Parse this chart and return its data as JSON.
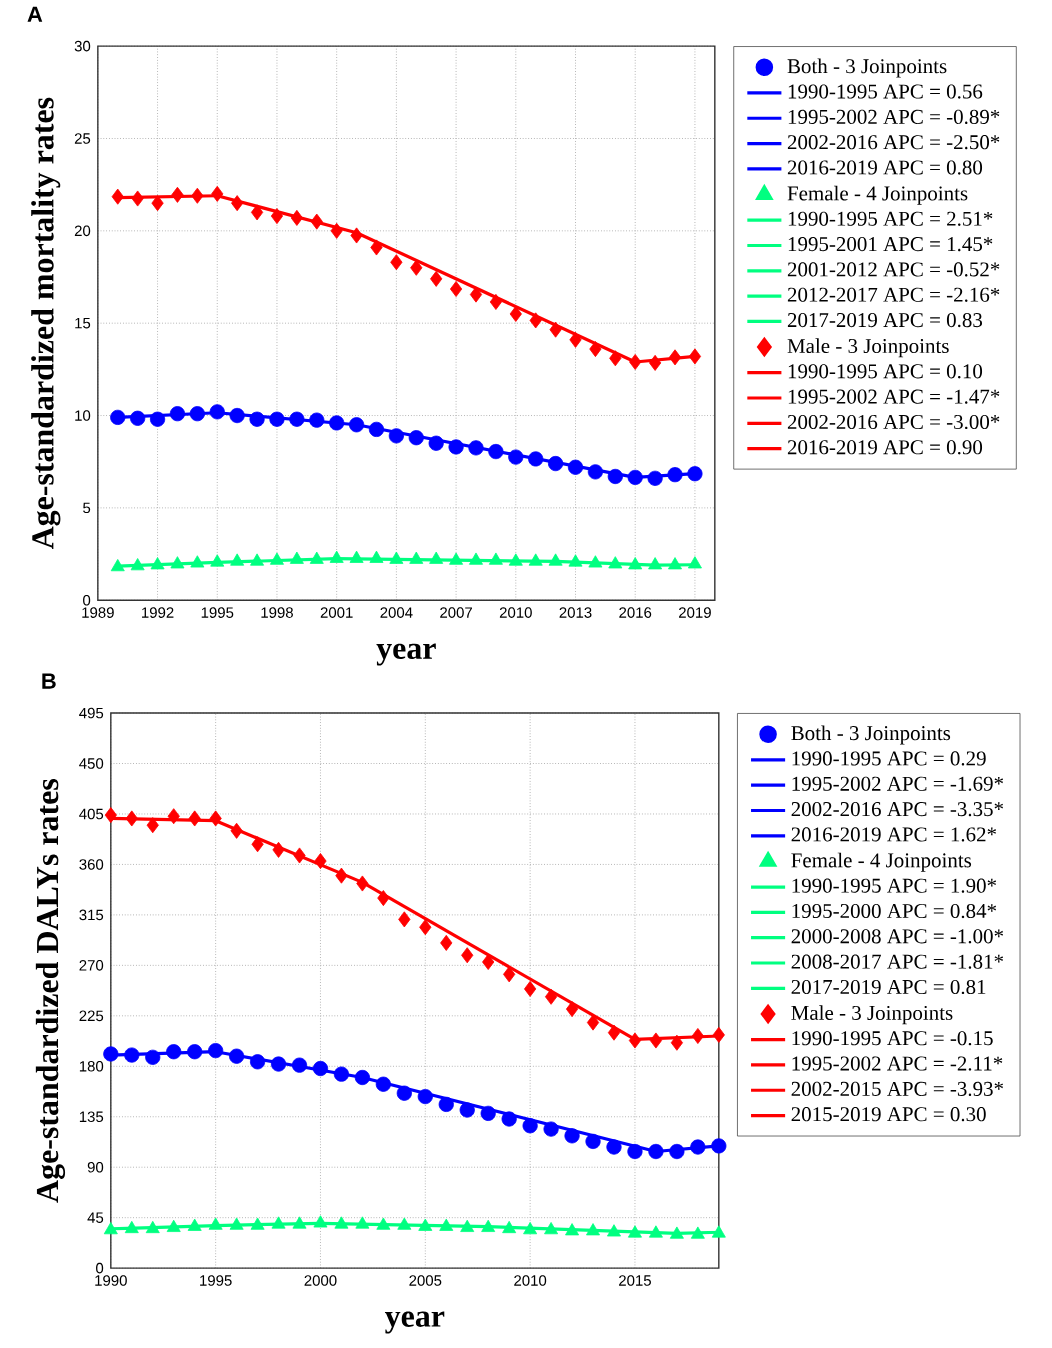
{
  "chart_data": [
    {
      "type": "line",
      "title": "A",
      "xlabel": "year",
      "ylabel": "Age-standardized mortality rates",
      "xlim": [
        1989,
        2020
      ],
      "ylim": [
        0,
        30
      ],
      "xticks": [
        1989,
        1992,
        1995,
        1998,
        2001,
        2004,
        2007,
        2010,
        2013,
        2016,
        2019
      ],
      "yticks": [
        0,
        5,
        10,
        15,
        20,
        25,
        30
      ],
      "grid": true,
      "legend": "right",
      "series": [
        {
          "name": "Both - 3 Joinpoints",
          "type": "scatter",
          "marker": "circle",
          "color": "#0000ff",
          "x": [
            1990,
            1991,
            1992,
            1993,
            1994,
            1995,
            1996,
            1997,
            1998,
            1999,
            2000,
            2001,
            2002,
            2003,
            2004,
            2005,
            2006,
            2007,
            2008,
            2009,
            2010,
            2011,
            2012,
            2013,
            2014,
            2015,
            2016,
            2017,
            2018,
            2019
          ],
          "values": [
            9.9,
            9.85,
            9.8,
            10.1,
            10.1,
            10.2,
            10.0,
            9.8,
            9.8,
            9.8,
            9.75,
            9.6,
            9.5,
            9.25,
            8.9,
            8.8,
            8.5,
            8.3,
            8.25,
            8.05,
            7.75,
            7.65,
            7.4,
            7.2,
            6.95,
            6.7,
            6.65,
            6.6,
            6.8,
            6.85
          ]
        },
        {
          "name": "1990-1995 APC = 0.56",
          "color": "#0000ff",
          "x": [
            1990,
            1995
          ],
          "values": [
            9.9,
            10.15
          ]
        },
        {
          "name": "1995-2002 APC = -0.89*",
          "color": "#0000ff",
          "x": [
            1995,
            2002
          ],
          "values": [
            10.15,
            9.5
          ]
        },
        {
          "name": "2002-2016 APC = -2.50*",
          "color": "#0000ff",
          "x": [
            2002,
            2016
          ],
          "values": [
            9.5,
            6.65
          ]
        },
        {
          "name": "2016-2019 APC = 0.80",
          "color": "#0000ff",
          "x": [
            2016,
            2019
          ],
          "values": [
            6.65,
            6.85
          ]
        },
        {
          "name": "Female - 4 Joinpoints",
          "type": "scatter",
          "marker": "triangle",
          "color": "#00ff80",
          "x": [
            1990,
            1991,
            1992,
            1993,
            1994,
            1995,
            1996,
            1997,
            1998,
            1999,
            2000,
            2001,
            2002,
            2003,
            2004,
            2005,
            2006,
            2007,
            2008,
            2009,
            2010,
            2011,
            2012,
            2013,
            2014,
            2015,
            2016,
            2017,
            2018,
            2019
          ],
          "values": [
            1.8,
            1.85,
            1.9,
            1.95,
            2.0,
            2.05,
            2.1,
            2.1,
            2.15,
            2.2,
            2.2,
            2.25,
            2.25,
            2.25,
            2.2,
            2.2,
            2.2,
            2.15,
            2.15,
            2.15,
            2.1,
            2.1,
            2.1,
            2.05,
            2.0,
            1.95,
            1.9,
            1.9,
            1.9,
            1.95
          ]
        },
        {
          "name": "1990-1995 APC = 2.51*",
          "color": "#00ff80",
          "x": [
            1990,
            1995
          ],
          "values": [
            1.85,
            2.05
          ]
        },
        {
          "name": "1995-2001 APC = 1.45*",
          "color": "#00ff80",
          "x": [
            1995,
            2001
          ],
          "values": [
            2.05,
            2.25
          ]
        },
        {
          "name": "2001-2012 APC = -0.52*",
          "color": "#00ff80",
          "x": [
            2001,
            2012
          ],
          "values": [
            2.25,
            2.1
          ]
        },
        {
          "name": "2012-2017 APC = -2.16*",
          "color": "#00ff80",
          "x": [
            2012,
            2017
          ],
          "values": [
            2.1,
            1.9
          ]
        },
        {
          "name": "2017-2019 APC = 0.83",
          "color": "#00ff80",
          "x": [
            2017,
            2019
          ],
          "values": [
            1.9,
            1.92
          ]
        },
        {
          "name": "Male - 3 Joinpoints",
          "type": "scatter",
          "marker": "diamond",
          "color": "#ff0000",
          "x": [
            1990,
            1991,
            1992,
            1993,
            1994,
            1995,
            1996,
            1997,
            1998,
            1999,
            2000,
            2001,
            2002,
            2003,
            2004,
            2005,
            2006,
            2007,
            2008,
            2009,
            2010,
            2011,
            2012,
            2013,
            2014,
            2015,
            2016,
            2017,
            2018,
            2019
          ],
          "values": [
            21.85,
            21.75,
            21.5,
            21.95,
            21.9,
            22.0,
            21.5,
            21.0,
            20.8,
            20.7,
            20.5,
            20.0,
            19.75,
            19.1,
            18.3,
            18.0,
            17.4,
            16.85,
            16.55,
            16.15,
            15.5,
            15.15,
            14.65,
            14.1,
            13.6,
            13.1,
            12.9,
            12.85,
            13.15,
            13.2
          ]
        },
        {
          "name": "1990-1995 APC = 0.10",
          "color": "#ff0000",
          "x": [
            1990,
            1995
          ],
          "values": [
            21.8,
            21.9
          ]
        },
        {
          "name": "1995-2002 APC = -1.47*",
          "color": "#ff0000",
          "x": [
            1995,
            2002
          ],
          "values": [
            21.9,
            19.9
          ]
        },
        {
          "name": "2002-2016 APC = -3.00*",
          "color": "#ff0000",
          "x": [
            2002,
            2016
          ],
          "values": [
            19.9,
            12.9
          ]
        },
        {
          "name": "2016-2019 APC = 0.90",
          "color": "#ff0000",
          "x": [
            2016,
            2019
          ],
          "values": [
            12.9,
            13.2
          ]
        }
      ]
    },
    {
      "type": "line",
      "title": "B",
      "xlabel": "year",
      "ylabel": "Age-standardized DALYs rates",
      "xlim": [
        1990,
        2019
      ],
      "ylim": [
        0,
        495
      ],
      "xticks": [
        1990,
        1995,
        2000,
        2005,
        2010,
        2015
      ],
      "yticks": [
        0,
        45,
        90,
        135,
        180,
        225,
        270,
        315,
        360,
        405,
        450,
        495
      ],
      "grid": true,
      "legend": "right",
      "series": [
        {
          "name": "Both - 3 Joinpoints",
          "type": "scatter",
          "marker": "circle",
          "color": "#0000ff",
          "x": [
            1990,
            1991,
            1992,
            1993,
            1994,
            1995,
            1996,
            1997,
            1998,
            1999,
            2000,
            2001,
            2002,
            2003,
            2004,
            2005,
            2006,
            2007,
            2008,
            2009,
            2010,
            2011,
            2012,
            2013,
            2014,
            2015,
            2016,
            2017,
            2018,
            2019
          ],
          "values": [
            191,
            190,
            188,
            193,
            193,
            194,
            189,
            184,
            182,
            181,
            178,
            173,
            170,
            164,
            156,
            153,
            146,
            141,
            138,
            133,
            127,
            124,
            118,
            113,
            108,
            104,
            104,
            104,
            108,
            109
          ]
        },
        {
          "name": "1990-1995 APC = 0.29",
          "color": "#0000ff",
          "x": [
            1990,
            1995
          ],
          "values": [
            190,
            193
          ]
        },
        {
          "name": "1995-2002 APC = -1.69*",
          "color": "#0000ff",
          "x": [
            1995,
            2002
          ],
          "values": [
            193,
            170
          ]
        },
        {
          "name": "2002-2016 APC = -3.35*",
          "color": "#0000ff",
          "x": [
            2002,
            2016
          ],
          "values": [
            170,
            104
          ]
        },
        {
          "name": "2016-2019 APC = 1.62*",
          "color": "#0000ff",
          "x": [
            2016,
            2019
          ],
          "values": [
            104,
            109
          ]
        },
        {
          "name": "Female - 4 Joinpoints",
          "type": "scatter",
          "marker": "triangle",
          "color": "#00ff80",
          "x": [
            1990,
            1991,
            1992,
            1993,
            1994,
            1995,
            1996,
            1997,
            1998,
            1999,
            2000,
            2001,
            2002,
            2003,
            2004,
            2005,
            2006,
            2007,
            2008,
            2009,
            2010,
            2011,
            2012,
            2013,
            2014,
            2015,
            2016,
            2017,
            2018,
            2019
          ],
          "values": [
            34,
            35,
            35,
            36,
            37,
            38,
            38,
            38,
            39,
            39,
            40,
            39,
            39,
            38,
            38,
            37,
            37,
            36,
            36,
            35,
            34,
            34,
            33,
            33,
            32,
            31,
            31,
            30,
            30,
            31
          ]
        },
        {
          "name": "1990-1995 APC = 1.90*",
          "color": "#00ff80",
          "x": [
            1990,
            1995
          ],
          "values": [
            35,
            38
          ]
        },
        {
          "name": "1995-2000 APC = 0.84*",
          "color": "#00ff80",
          "x": [
            1995,
            2000
          ],
          "values": [
            38,
            40
          ]
        },
        {
          "name": "2000-2008 APC = -1.00*",
          "color": "#00ff80",
          "x": [
            2000,
            2008
          ],
          "values": [
            40,
            37
          ]
        },
        {
          "name": "2008-2017 APC = -1.81*",
          "color": "#00ff80",
          "x": [
            2008,
            2017
          ],
          "values": [
            37,
            31
          ]
        },
        {
          "name": "2017-2019 APC = 0.81",
          "color": "#00ff80",
          "x": [
            2017,
            2019
          ],
          "values": [
            31,
            32
          ]
        },
        {
          "name": "Male - 3 Joinpoints",
          "type": "scatter",
          "marker": "diamond",
          "color": "#ff0000",
          "x": [
            1990,
            1991,
            1992,
            1993,
            1994,
            1995,
            1996,
            1997,
            1998,
            1999,
            2000,
            2001,
            2002,
            2003,
            2004,
            2005,
            2006,
            2007,
            2008,
            2009,
            2010,
            2011,
            2012,
            2013,
            2014,
            2015,
            2016,
            2017,
            2018,
            2019
          ],
          "values": [
            404,
            401,
            395,
            403,
            401,
            401,
            390,
            378,
            373,
            368,
            363,
            350,
            343,
            330,
            311,
            304,
            290,
            279,
            273,
            262,
            249,
            242,
            231,
            219,
            210,
            203,
            203,
            201,
            207,
            208
          ]
        },
        {
          "name": "1990-1995 APC = -0.15",
          "color": "#ff0000",
          "x": [
            1990,
            1995
          ],
          "values": [
            401,
            399
          ]
        },
        {
          "name": "1995-2002 APC = -2.11*",
          "color": "#ff0000",
          "x": [
            1995,
            2002
          ],
          "values": [
            399,
            344
          ]
        },
        {
          "name": "2002-2015 APC = -3.93*",
          "color": "#ff0000",
          "x": [
            2002,
            2015
          ],
          "values": [
            344,
            204
          ]
        },
        {
          "name": "2015-2019 APC = 0.30",
          "color": "#ff0000",
          "x": [
            2015,
            2019
          ],
          "values": [
            204,
            207
          ]
        }
      ]
    }
  ]
}
